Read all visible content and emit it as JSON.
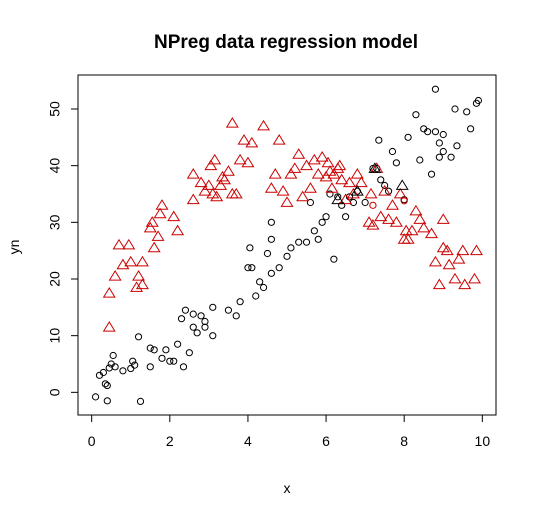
{
  "chart_data": {
    "type": "scatter",
    "title": "NPreg data regression model",
    "xlabel": "x",
    "ylabel": "yn",
    "xlim": [
      -0.35,
      10.35
    ],
    "ylim": [
      -4,
      56
    ],
    "x_ticks": [
      0,
      2,
      4,
      6,
      8,
      10
    ],
    "y_ticks": [
      0,
      10,
      20,
      30,
      40,
      50
    ],
    "grid": false,
    "legend": "none",
    "series": [
      {
        "marker": "circle",
        "color": "#000000",
        "points": [
          [
            0.1,
            -0.8
          ],
          [
            0.2,
            3.0
          ],
          [
            0.3,
            3.5
          ],
          [
            0.35,
            1.5
          ],
          [
            0.4,
            1.2
          ],
          [
            0.4,
            -1.5
          ],
          [
            0.45,
            4.3
          ],
          [
            0.5,
            5.0
          ],
          [
            0.55,
            6.5
          ],
          [
            0.6,
            4.5
          ],
          [
            0.8,
            3.8
          ],
          [
            1.0,
            4.2
          ],
          [
            1.05,
            5.5
          ],
          [
            1.1,
            4.8
          ],
          [
            1.2,
            9.8
          ],
          [
            1.25,
            -1.6
          ],
          [
            1.5,
            4.5
          ],
          [
            1.5,
            7.8
          ],
          [
            1.6,
            7.5
          ],
          [
            1.8,
            6.0
          ],
          [
            1.9,
            7.5
          ],
          [
            2.0,
            5.5
          ],
          [
            2.1,
            5.5
          ],
          [
            2.2,
            8.5
          ],
          [
            2.3,
            13.0
          ],
          [
            2.35,
            4.5
          ],
          [
            2.4,
            14.5
          ],
          [
            2.5,
            7.0
          ],
          [
            2.6,
            11.5
          ],
          [
            2.6,
            13.8
          ],
          [
            2.7,
            10.5
          ],
          [
            2.8,
            13.5
          ],
          [
            2.9,
            11.5
          ],
          [
            2.9,
            12.5
          ],
          [
            3.1,
            10.0
          ],
          [
            3.1,
            15.0
          ],
          [
            3.5,
            14.5
          ],
          [
            3.7,
            13.5
          ],
          [
            3.8,
            16.0
          ],
          [
            4.0,
            22.0
          ],
          [
            4.05,
            25.5
          ],
          [
            4.1,
            22.0
          ],
          [
            4.2,
            17.0
          ],
          [
            4.3,
            19.5
          ],
          [
            4.4,
            18.5
          ],
          [
            4.5,
            24.5
          ],
          [
            4.6,
            30.0
          ],
          [
            4.6,
            27.0
          ],
          [
            4.6,
            21.0
          ],
          [
            4.8,
            22.0
          ],
          [
            5.0,
            24.0
          ],
          [
            5.1,
            25.5
          ],
          [
            5.3,
            26.5
          ],
          [
            5.5,
            26.5
          ],
          [
            5.6,
            33.5
          ],
          [
            5.7,
            28.5
          ],
          [
            5.8,
            27.0
          ],
          [
            5.9,
            30.0
          ],
          [
            6.0,
            31.0
          ],
          [
            6.1,
            35.0
          ],
          [
            6.2,
            23.5
          ],
          [
            6.3,
            34.5
          ],
          [
            6.4,
            33.0
          ],
          [
            6.5,
            31.0
          ],
          [
            6.6,
            34.5
          ],
          [
            6.7,
            33.5
          ],
          [
            6.8,
            35.5
          ],
          [
            7.0,
            33.5
          ],
          [
            7.2,
            39.5
          ],
          [
            7.3,
            39.5
          ],
          [
            7.35,
            44.5
          ],
          [
            7.4,
            37.5
          ],
          [
            7.5,
            36.5
          ],
          [
            7.6,
            35.5
          ],
          [
            7.7,
            42.5
          ],
          [
            7.8,
            40.5
          ],
          [
            8.0,
            34.0
          ],
          [
            8.1,
            45.0
          ],
          [
            8.3,
            49.0
          ],
          [
            8.4,
            41.0
          ],
          [
            8.5,
            46.5
          ],
          [
            8.6,
            46.0
          ],
          [
            8.7,
            38.5
          ],
          [
            8.8,
            53.5
          ],
          [
            8.8,
            46.0
          ],
          [
            8.9,
            44.0
          ],
          [
            8.9,
            41.5
          ],
          [
            9.0,
            42.5
          ],
          [
            9.0,
            45.5
          ],
          [
            9.2,
            41.5
          ],
          [
            9.3,
            50.0
          ],
          [
            9.35,
            43.5
          ],
          [
            9.6,
            49.5
          ],
          [
            9.7,
            46.5
          ],
          [
            9.85,
            51.0
          ],
          [
            9.9,
            51.5
          ]
        ]
      },
      {
        "marker": "triangle",
        "color": "#cc0000",
        "points": [
          [
            0.45,
            11.5
          ],
          [
            0.45,
            17.5
          ],
          [
            0.6,
            20.5
          ],
          [
            0.7,
            26.0
          ],
          [
            0.8,
            22.5
          ],
          [
            0.95,
            26.0
          ],
          [
            1.0,
            23.0
          ],
          [
            1.15,
            18.5
          ],
          [
            1.2,
            20.5
          ],
          [
            1.3,
            19.0
          ],
          [
            1.3,
            23.0
          ],
          [
            1.5,
            29.0
          ],
          [
            1.55,
            30.0
          ],
          [
            1.6,
            25.5
          ],
          [
            1.7,
            27.5
          ],
          [
            1.75,
            31.5
          ],
          [
            1.8,
            33.0
          ],
          [
            2.1,
            31.0
          ],
          [
            2.2,
            28.5
          ],
          [
            2.6,
            38.5
          ],
          [
            2.6,
            34.0
          ],
          [
            2.8,
            37.0
          ],
          [
            2.9,
            35.5
          ],
          [
            3.0,
            36.5
          ],
          [
            3.05,
            40.0
          ],
          [
            3.1,
            35.0
          ],
          [
            3.15,
            41.0
          ],
          [
            3.2,
            34.5
          ],
          [
            3.3,
            36.5
          ],
          [
            3.35,
            38.0
          ],
          [
            3.4,
            37.5
          ],
          [
            3.5,
            39.0
          ],
          [
            3.6,
            47.5
          ],
          [
            3.6,
            35.0
          ],
          [
            3.7,
            35.0
          ],
          [
            3.8,
            41.0
          ],
          [
            3.9,
            44.5
          ],
          [
            4.0,
            40.5
          ],
          [
            4.1,
            44.0
          ],
          [
            4.4,
            47.0
          ],
          [
            4.6,
            36.0
          ],
          [
            4.7,
            38.5
          ],
          [
            4.8,
            44.5
          ],
          [
            4.9,
            35.5
          ],
          [
            5.0,
            33.5
          ],
          [
            5.1,
            38.5
          ],
          [
            5.2,
            39.5
          ],
          [
            5.3,
            42.0
          ],
          [
            5.4,
            34.5
          ],
          [
            5.5,
            40.0
          ],
          [
            5.6,
            36.0
          ],
          [
            5.7,
            41.0
          ],
          [
            5.8,
            38.5
          ],
          [
            5.9,
            41.5
          ],
          [
            6.0,
            38.0
          ],
          [
            6.05,
            40.5
          ],
          [
            6.1,
            39.0
          ],
          [
            6.15,
            36.0
          ],
          [
            6.2,
            38.5
          ],
          [
            6.3,
            39.5
          ],
          [
            6.35,
            40.0
          ],
          [
            6.4,
            37.5
          ],
          [
            6.5,
            34.0
          ],
          [
            6.6,
            37.0
          ],
          [
            6.7,
            35.0
          ],
          [
            6.8,
            38.5
          ],
          [
            6.9,
            37.0
          ],
          [
            7.1,
            30.0
          ],
          [
            7.15,
            35.0
          ],
          [
            7.2,
            29.5
          ],
          [
            7.3,
            39.5
          ],
          [
            7.4,
            31.0
          ],
          [
            7.5,
            35.5
          ],
          [
            7.6,
            30.5
          ],
          [
            7.7,
            33.0
          ],
          [
            7.8,
            30.0
          ],
          [
            7.9,
            35.0
          ],
          [
            8.0,
            27.0
          ],
          [
            8.05,
            28.5
          ],
          [
            8.1,
            27.0
          ],
          [
            8.2,
            28.5
          ],
          [
            8.3,
            32.0
          ],
          [
            8.4,
            30.5
          ],
          [
            8.5,
            29.0
          ],
          [
            8.7,
            28.0
          ],
          [
            8.8,
            23.0
          ],
          [
            8.9,
            19.0
          ],
          [
            9.0,
            25.5
          ],
          [
            9.0,
            30.5
          ],
          [
            9.1,
            25.0
          ],
          [
            9.15,
            22.5
          ],
          [
            9.3,
            20.0
          ],
          [
            9.4,
            23.5
          ],
          [
            9.5,
            25.0
          ],
          [
            9.55,
            19.0
          ],
          [
            9.8,
            20.0
          ],
          [
            9.85,
            25.0
          ]
        ]
      },
      {
        "marker": "triangle",
        "color": "#000000",
        "points": [
          [
            6.3,
            34.0
          ],
          [
            6.8,
            35.5
          ],
          [
            7.25,
            39.5
          ],
          [
            7.95,
            36.5
          ]
        ]
      },
      {
        "marker": "circle",
        "color": "#cc0000",
        "points": [
          [
            7.2,
            33.0
          ],
          [
            8.0,
            33.8
          ]
        ]
      }
    ]
  }
}
